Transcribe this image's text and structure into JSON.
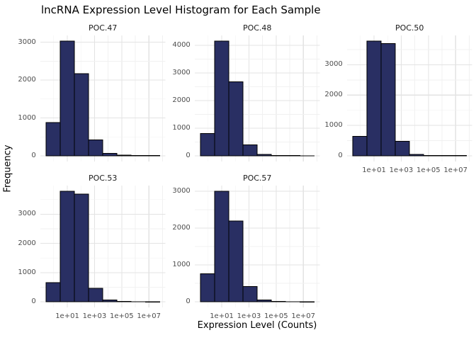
{
  "chart_data": {
    "type": "bar",
    "subtype": "faceted-histogram",
    "title": "lncRNA Expression Level Histogram for Each Sample",
    "xlabel": "Expression Level (Counts)",
    "ylabel": "Frequency",
    "x_scale": "log10",
    "x_range_log10": [
      -0.99,
      8.22
    ],
    "x_tick_labels": [
      "1e+01",
      "1e+03",
      "1e+05",
      "1e+07"
    ],
    "x_tick_log10": [
      1,
      3,
      5,
      7
    ],
    "bin_edges_log10": [
      -0.57,
      0.475,
      1.52,
      2.565,
      3.61,
      4.655,
      5.7,
      6.745,
      7.79
    ],
    "grid": "major-and-minor",
    "legend": "none",
    "colors": {
      "bar_fill": "#292f63",
      "bar_stroke": "#000000",
      "grid_major": "#e3e3e3",
      "grid_minor": "#f1f1f1",
      "tick_text": "#4d4d4d",
      "strip_text": "#1a1a1a",
      "title_text": "#000000",
      "background": "#ffffff"
    },
    "facets": [
      {
        "label": "POC.47",
        "y_ticks": [
          0,
          1000,
          2000,
          3000
        ],
        "counts": [
          880,
          3030,
          2170,
          420,
          60,
          15,
          8,
          5
        ]
      },
      {
        "label": "POC.48",
        "y_ticks": [
          0,
          1000,
          2000,
          3000,
          4000
        ],
        "counts": [
          800,
          4150,
          2680,
          400,
          50,
          12,
          6,
          4
        ]
      },
      {
        "label": "POC.50",
        "y_ticks": [
          0,
          1000,
          2000,
          3000
        ],
        "counts": [
          640,
          3780,
          3700,
          480,
          50,
          12,
          6,
          4
        ]
      },
      {
        "label": "POC.53",
        "y_ticks": [
          0,
          1000,
          2000,
          3000
        ],
        "counts": [
          660,
          3790,
          3690,
          460,
          60,
          15,
          6,
          4
        ]
      },
      {
        "label": "POC.57",
        "y_ticks": [
          0,
          1000,
          2000,
          3000
        ],
        "counts": [
          760,
          3000,
          2190,
          420,
          50,
          12,
          6,
          4
        ]
      }
    ]
  }
}
